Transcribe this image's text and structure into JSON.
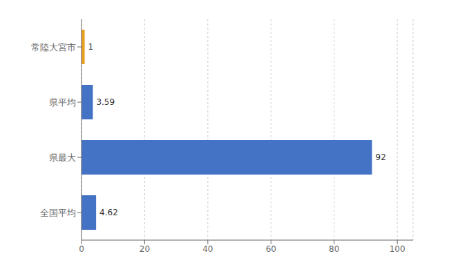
{
  "chart_data": {
    "type": "bar",
    "orientation": "horizontal",
    "categories": [
      "全国平均",
      "県最大",
      "県平均",
      "常陸大宮市"
    ],
    "values": [
      4.62,
      92,
      3.59,
      1
    ],
    "colors": [
      "#4472c4",
      "#4472c4",
      "#4472c4",
      "#e8a020"
    ],
    "xlim": [
      0,
      105
    ],
    "xticks": [
      0,
      20,
      40,
      60,
      80,
      100
    ],
    "grid": true,
    "data_labels": true
  }
}
